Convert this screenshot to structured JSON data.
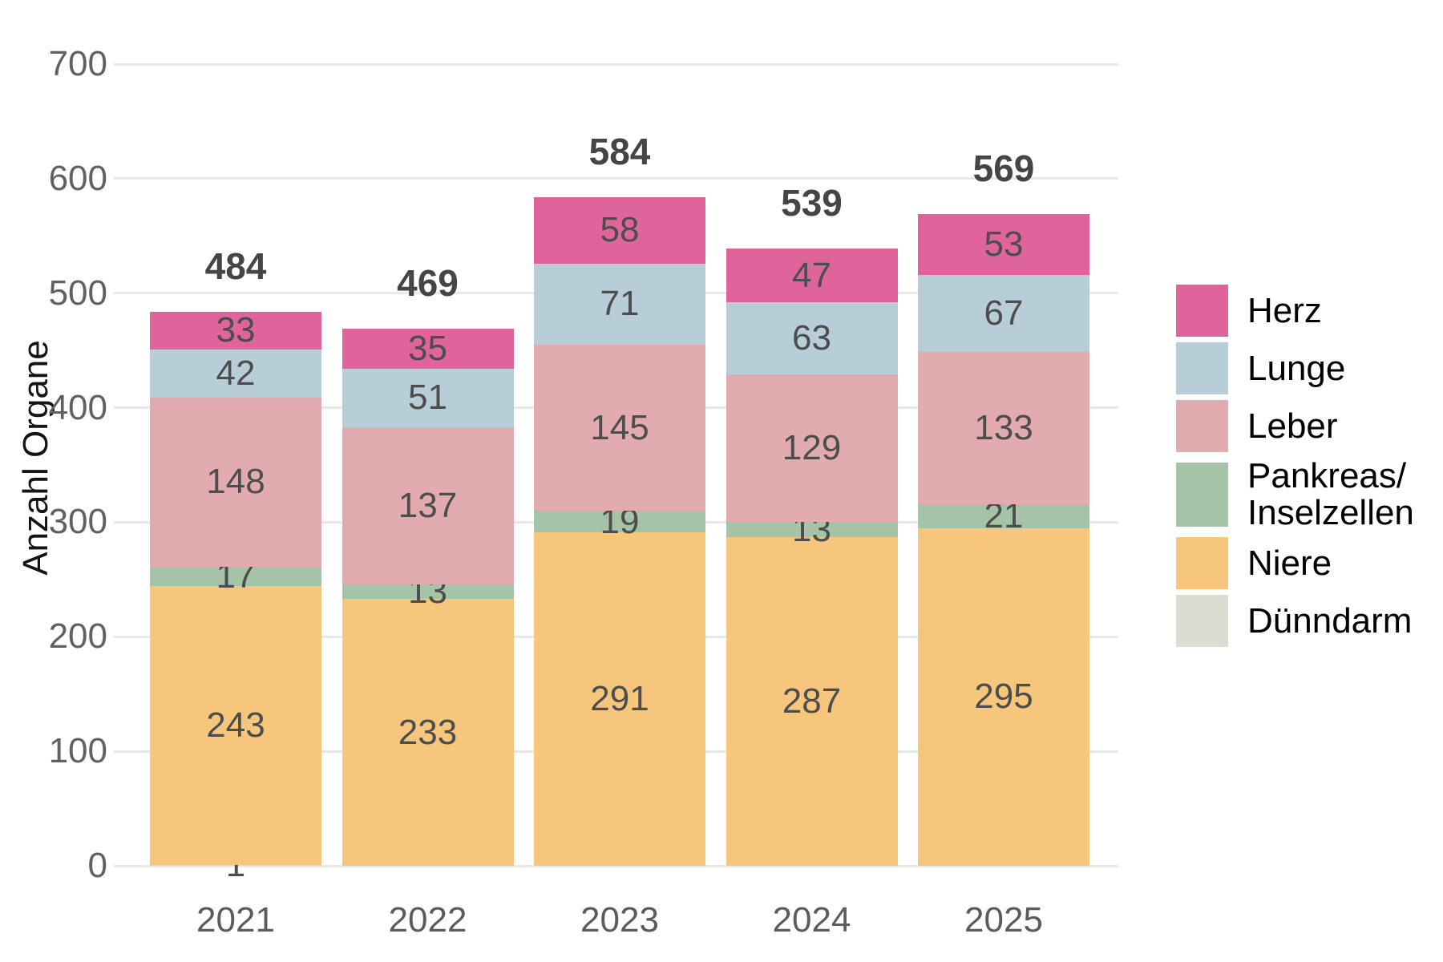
{
  "chart_data": {
    "type": "bar",
    "stacked": true,
    "title": "",
    "ylabel": "Anzahl Organe",
    "xlabel": "",
    "ylim": [
      0,
      700
    ],
    "yticks": [
      0,
      100,
      200,
      300,
      400,
      500,
      600,
      700
    ],
    "grid": "horizontal",
    "legend_position": "right",
    "categories": [
      "2021",
      "2022",
      "2023",
      "2024",
      "2025"
    ],
    "series": [
      {
        "name": "Dünndarm",
        "color": "#dcdcd2",
        "values": [
          1,
          0,
          0,
          0,
          0
        ]
      },
      {
        "name": "Niere",
        "color": "#f6c67c",
        "values": [
          243,
          233,
          291,
          287,
          295
        ]
      },
      {
        "name": "Pankreas/Inselzellen",
        "color": "#a5c3a6",
        "values": [
          17,
          13,
          19,
          13,
          21
        ]
      },
      {
        "name": "Leber",
        "color": "#e1abaf",
        "values": [
          148,
          137,
          145,
          129,
          133
        ]
      },
      {
        "name": "Lunge",
        "color": "#b7ced8",
        "values": [
          42,
          51,
          71,
          63,
          67
        ]
      },
      {
        "name": "Herz",
        "color": "#e0649c",
        "values": [
          33,
          35,
          58,
          47,
          53
        ]
      }
    ],
    "totals": [
      484,
      469,
      584,
      539,
      569
    ],
    "legend": [
      {
        "label": "Herz",
        "lines": [
          "Herz"
        ],
        "color": "#e0649c"
      },
      {
        "label": "Lunge",
        "lines": [
          "Lunge"
        ],
        "color": "#b7ced8"
      },
      {
        "label": "Leber",
        "lines": [
          "Leber"
        ],
        "color": "#e1abaf"
      },
      {
        "label": "Pankreas/Inselzellen",
        "lines": [
          "Pankreas/",
          "Inselzellen"
        ],
        "color": "#a5c3a6"
      },
      {
        "label": "Niere",
        "lines": [
          "Niere"
        ],
        "color": "#f6c67c"
      },
      {
        "label": "Dünndarm",
        "lines": [
          "Dünndarm"
        ],
        "color": "#dcdcd2"
      }
    ]
  }
}
